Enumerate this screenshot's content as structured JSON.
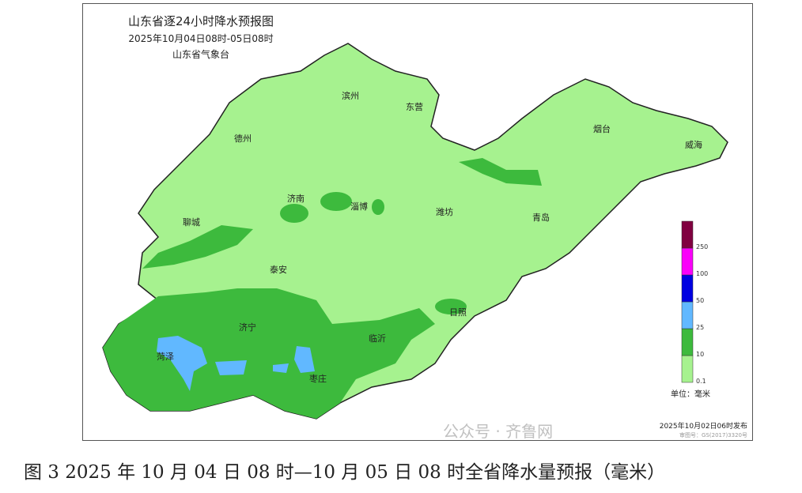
{
  "map": {
    "title": "山东省逐24小时降水预报图",
    "subtitle": "2025年10月04日08时-05日08时",
    "issuer": "山东省气象台",
    "cities": [
      {
        "name": "滨州"
      },
      {
        "name": "东营"
      },
      {
        "name": "德州"
      },
      {
        "name": "烟台"
      },
      {
        "name": "威海"
      },
      {
        "name": "济南"
      },
      {
        "name": "淄博"
      },
      {
        "name": "潍坊"
      },
      {
        "name": "青岛"
      },
      {
        "name": "聊城"
      },
      {
        "name": "泰安"
      },
      {
        "name": "日照"
      },
      {
        "name": "济宁"
      },
      {
        "name": "临沂"
      },
      {
        "name": "菏泽"
      },
      {
        "name": "枣庄"
      }
    ],
    "legend": {
      "levels": [
        "0.1",
        "10",
        "25",
        "50",
        "100",
        "250"
      ],
      "colors": [
        "#a6f28f",
        "#3dba3d",
        "#61b8ff",
        "#0000e1",
        "#fa00fa",
        "#800040"
      ],
      "unit": "单位：毫米"
    },
    "issued": "2025年10月02日06时发布",
    "approval": "审图号：GS(2017)3320号"
  },
  "caption": "图 3 2025 年 10 月 04 日 08 时—10 月 05 日 08 时全省降水量预报（毫米）",
  "watermark": "公众号 · 齐鲁网"
}
